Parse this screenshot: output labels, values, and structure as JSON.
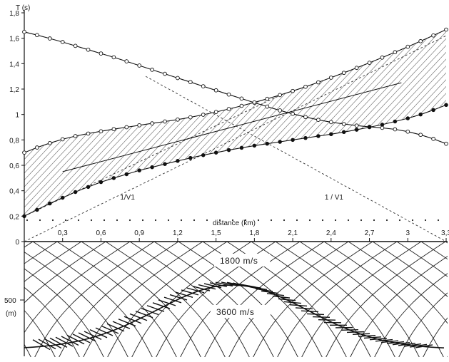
{
  "chart_data": {
    "type": "line",
    "ylabel": "T (s)",
    "xlabel": "distance (km)",
    "xlim": [
      0,
      3.3
    ],
    "ylim": [
      0,
      1.8
    ],
    "x_ticks": [
      "0,3",
      "0,6",
      "0,9",
      "1,2",
      "1,5",
      "1,8",
      "2,1",
      "2,4",
      "2,7",
      "3",
      "3,3"
    ],
    "x_tick_values": [
      0.3,
      0.6,
      0.9,
      1.2,
      1.5,
      1.8,
      2.1,
      2.4,
      2.7,
      3.0,
      3.3
    ],
    "y_ticks": [
      "0",
      "0,2",
      "0,4",
      "0,6",
      "0,8",
      "1",
      "1,2",
      "1,4",
      "1,6",
      "1,8"
    ],
    "y_tick_values": [
      0,
      0.2,
      0.4,
      0.6,
      0.8,
      1.0,
      1.2,
      1.4,
      1.6,
      1.8
    ],
    "series": [
      {
        "marker": "open",
        "x": [
          0,
          0.1,
          0.2,
          0.3,
          0.4,
          0.5,
          0.6,
          0.7,
          0.8,
          0.9,
          1.0,
          1.1,
          1.2,
          1.3,
          1.4,
          1.5,
          1.6,
          1.7,
          1.8,
          1.9,
          2.0,
          2.1,
          2.2,
          2.3,
          2.4,
          2.5,
          2.6,
          2.7,
          2.8,
          2.9,
          3.0,
          3.1,
          3.2,
          3.3
        ],
        "y": [
          1.65,
          1.625,
          1.598,
          1.57,
          1.54,
          1.51,
          1.48,
          1.45,
          1.418,
          1.385,
          1.352,
          1.32,
          1.287,
          1.255,
          1.222,
          1.19,
          1.157,
          1.125,
          1.093,
          1.062,
          1.032,
          1.005,
          0.98,
          0.958,
          0.94,
          0.925,
          0.913,
          0.903,
          0.895,
          0.883,
          0.865,
          0.84,
          0.808,
          0.77
        ]
      },
      {
        "marker": "open",
        "x": [
          0,
          0.1,
          0.2,
          0.3,
          0.4,
          0.5,
          0.6,
          0.7,
          0.8,
          0.9,
          1.0,
          1.1,
          1.2,
          1.3,
          1.4,
          1.5,
          1.6,
          1.7,
          1.8,
          1.9,
          2.0,
          2.1,
          2.2,
          2.3,
          2.4,
          2.5,
          2.6,
          2.7,
          2.8,
          2.9,
          3.0,
          3.1,
          3.2,
          3.3
        ],
        "y": [
          0.7,
          0.74,
          0.775,
          0.805,
          0.83,
          0.85,
          0.868,
          0.885,
          0.9,
          0.915,
          0.93,
          0.945,
          0.96,
          0.978,
          0.998,
          1.02,
          1.043,
          1.068,
          1.095,
          1.123,
          1.153,
          1.185,
          1.218,
          1.253,
          1.29,
          1.328,
          1.367,
          1.407,
          1.448,
          1.49,
          1.533,
          1.577,
          1.622,
          1.668
        ]
      },
      {
        "marker": "filled",
        "x": [
          0,
          0.1,
          0.2,
          0.3,
          0.4,
          0.5,
          0.6,
          0.7,
          0.8,
          0.9,
          1.0,
          1.1,
          1.2,
          1.3,
          1.4,
          1.5,
          1.6,
          1.7,
          1.8,
          1.9,
          2.0,
          2.1,
          2.2,
          2.3,
          2.4,
          2.5,
          2.6,
          2.7,
          2.8,
          2.9,
          3.0,
          3.1,
          3.2,
          3.3
        ],
        "y": [
          0.2,
          0.25,
          0.3,
          0.345,
          0.39,
          0.43,
          0.468,
          0.5,
          0.53,
          0.56,
          0.585,
          0.61,
          0.635,
          0.658,
          0.68,
          0.7,
          0.72,
          0.738,
          0.755,
          0.77,
          0.785,
          0.8,
          0.815,
          0.83,
          0.845,
          0.862,
          0.88,
          0.9,
          0.92,
          0.945,
          0.97,
          1.0,
          1.035,
          1.075
        ]
      }
    ],
    "dashed_lines": [
      {
        "label": "1/V1",
        "x": [
          0,
          2.0
        ],
        "y": [
          0.2,
          1.15
        ]
      },
      {
        "label": "1 / V1",
        "x": [
          0.95,
          3.3
        ],
        "y": [
          1.3,
          0
        ]
      },
      {
        "x": [
          0,
          3.3
        ],
        "y": [
          0.0,
          1.62
        ]
      }
    ],
    "solid_lines": [
      {
        "x": [
          0.3,
          2.95
        ],
        "y": [
          0.55,
          1.25
        ]
      }
    ],
    "labels": [
      {
        "text": "1/V1",
        "x": 0.75,
        "y": 0.33
      },
      {
        "text": "1 / V1",
        "x": 2.35,
        "y": 0.33
      }
    ],
    "depth_axis": {
      "unit": "(m)",
      "tick": "500"
    },
    "velocities": [
      "1800 m/s",
      "3600 m/s"
    ],
    "grid": false
  }
}
